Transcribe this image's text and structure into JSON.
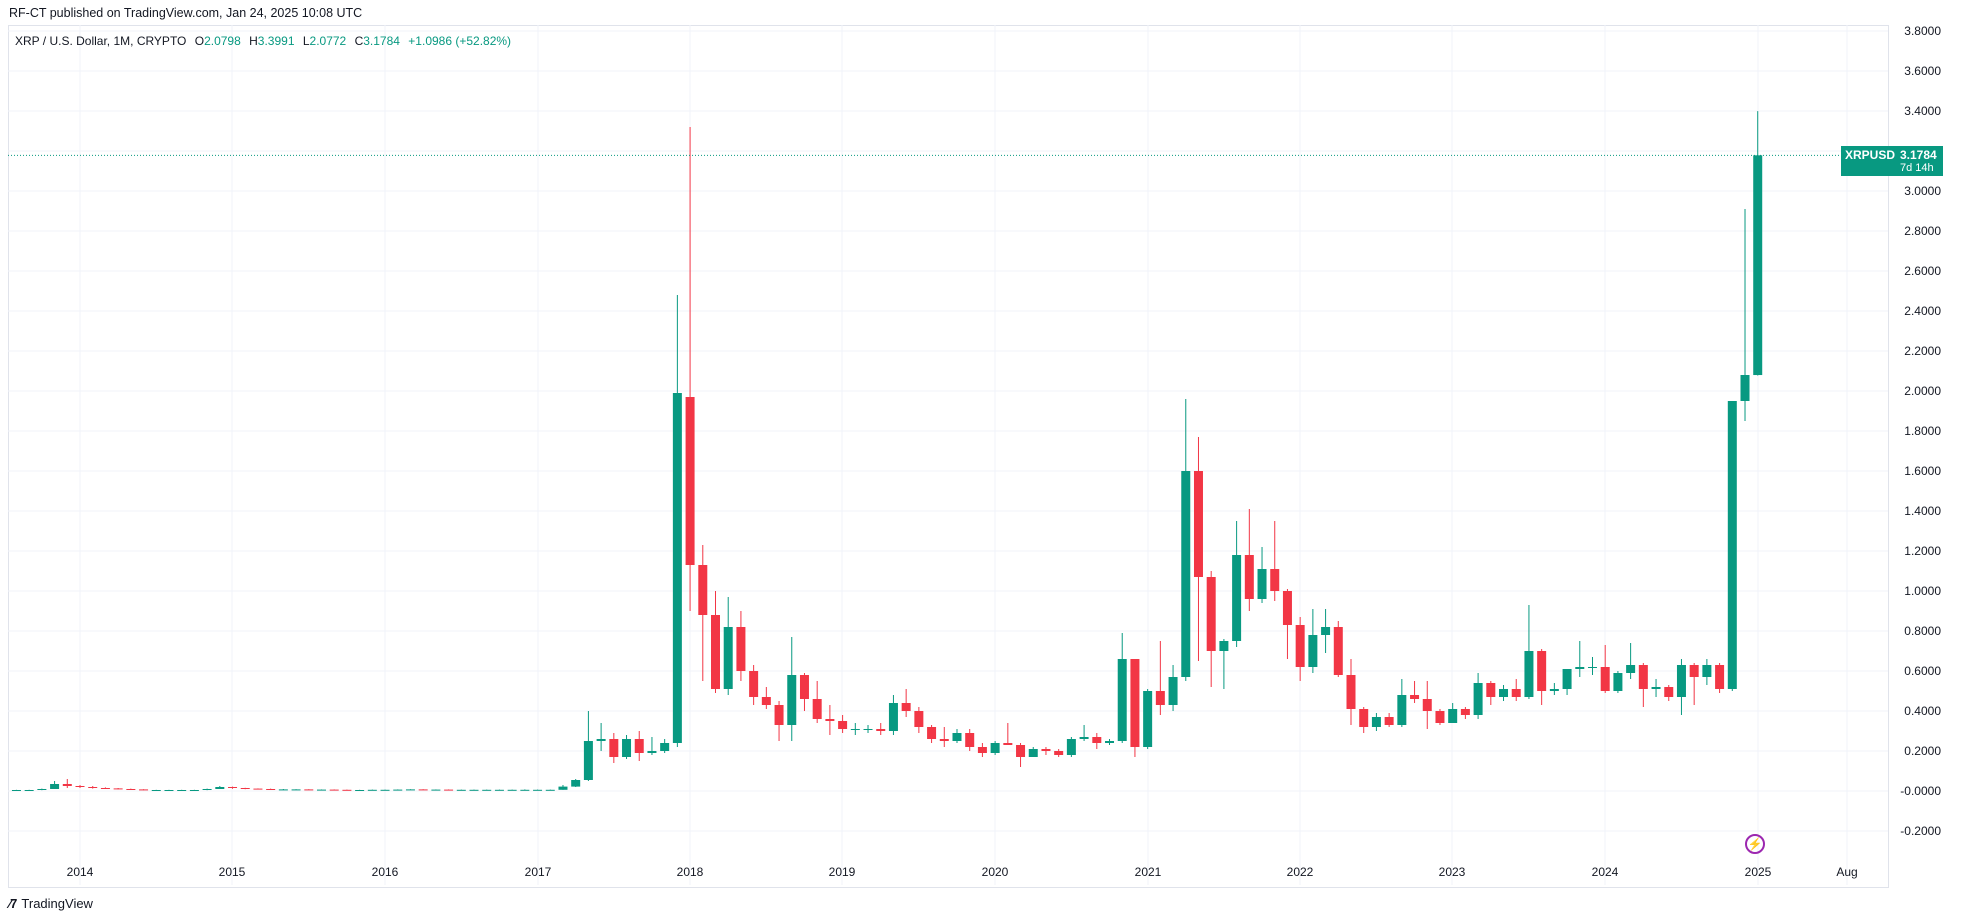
{
  "header": {
    "published": "RF-CT published on TradingView.com, Jan 24, 2025 10:08 UTC"
  },
  "legend": {
    "symbol": "XRP / U.S. Dollar, 1M, CRYPTO",
    "o_label": "O",
    "o_value": "2.0798",
    "h_label": "H",
    "h_value": "3.3991",
    "l_label": "L",
    "l_value": "2.0772",
    "c_label": "C",
    "c_value": "3.1784",
    "change": "+1.0986 (+52.82%)"
  },
  "price_tag": {
    "symbol": "XRPUSD",
    "price": "3.1784",
    "countdown": "7d 14h"
  },
  "footer": {
    "brand": "TradingView"
  },
  "colors": {
    "up": "#089981",
    "down": "#f23645",
    "grid": "#f0f3fa",
    "axis_text": "#131722"
  },
  "chart_data": {
    "type": "candlestick",
    "interval": "1M",
    "y_axis_position": "right",
    "ylim": [
      -0.28,
      3.82
    ],
    "y_ticks": [
      "3.8000",
      "3.6000",
      "3.4000",
      "3.2000",
      "3.0000",
      "2.8000",
      "2.6000",
      "2.4000",
      "2.2000",
      "2.0000",
      "1.8000",
      "1.6000",
      "1.4000",
      "1.2000",
      "1.0000",
      "0.8000",
      "0.6000",
      "0.4000",
      "0.2000",
      "-0.0000",
      "-0.2000"
    ],
    "x_ticks": [
      "2014",
      "2015",
      "2016",
      "2017",
      "2018",
      "2019",
      "2020",
      "2021",
      "2022",
      "2023",
      "2024",
      "2025",
      "Aug"
    ],
    "last_price": 3.1784,
    "candles": [
      {
        "t": "2013-08",
        "o": 0.004,
        "h": 0.006,
        "l": 0.003,
        "c": 0.005
      },
      {
        "t": "2013-09",
        "o": 0.005,
        "h": 0.006,
        "l": 0.004,
        "c": 0.005
      },
      {
        "t": "2013-10",
        "o": 0.005,
        "h": 0.012,
        "l": 0.004,
        "c": 0.01
      },
      {
        "t": "2013-11",
        "o": 0.01,
        "h": 0.05,
        "l": 0.01,
        "c": 0.035
      },
      {
        "t": "2013-12",
        "o": 0.035,
        "h": 0.06,
        "l": 0.015,
        "c": 0.025
      },
      {
        "t": "2014-01",
        "o": 0.025,
        "h": 0.03,
        "l": 0.015,
        "c": 0.02
      },
      {
        "t": "2014-02",
        "o": 0.02,
        "h": 0.025,
        "l": 0.012,
        "c": 0.015
      },
      {
        "t": "2014-03",
        "o": 0.015,
        "h": 0.018,
        "l": 0.01,
        "c": 0.013
      },
      {
        "t": "2014-04",
        "o": 0.013,
        "h": 0.015,
        "l": 0.008,
        "c": 0.01
      },
      {
        "t": "2014-05",
        "o": 0.01,
        "h": 0.012,
        "l": 0.006,
        "c": 0.008
      },
      {
        "t": "2014-06",
        "o": 0.008,
        "h": 0.009,
        "l": 0.004,
        "c": 0.005
      },
      {
        "t": "2014-07",
        "o": 0.005,
        "h": 0.006,
        "l": 0.004,
        "c": 0.005
      },
      {
        "t": "2014-08",
        "o": 0.005,
        "h": 0.006,
        "l": 0.004,
        "c": 0.005
      },
      {
        "t": "2014-09",
        "o": 0.005,
        "h": 0.006,
        "l": 0.004,
        "c": 0.005
      },
      {
        "t": "2014-10",
        "o": 0.005,
        "h": 0.006,
        "l": 0.004,
        "c": 0.005
      },
      {
        "t": "2014-11",
        "o": 0.005,
        "h": 0.012,
        "l": 0.004,
        "c": 0.01
      },
      {
        "t": "2014-12",
        "o": 0.01,
        "h": 0.025,
        "l": 0.01,
        "c": 0.02
      },
      {
        "t": "2015-01",
        "o": 0.02,
        "h": 0.022,
        "l": 0.011,
        "c": 0.015
      },
      {
        "t": "2015-02",
        "o": 0.015,
        "h": 0.016,
        "l": 0.009,
        "c": 0.012
      },
      {
        "t": "2015-03",
        "o": 0.012,
        "h": 0.013,
        "l": 0.008,
        "c": 0.01
      },
      {
        "t": "2015-04",
        "o": 0.01,
        "h": 0.012,
        "l": 0.007,
        "c": 0.008
      },
      {
        "t": "2015-05",
        "o": 0.008,
        "h": 0.01,
        "l": 0.006,
        "c": 0.008
      },
      {
        "t": "2015-06",
        "o": 0.008,
        "h": 0.009,
        "l": 0.006,
        "c": 0.008
      },
      {
        "t": "2015-07",
        "o": 0.008,
        "h": 0.009,
        "l": 0.006,
        "c": 0.007
      },
      {
        "t": "2015-08",
        "o": 0.007,
        "h": 0.008,
        "l": 0.006,
        "c": 0.007
      },
      {
        "t": "2015-09",
        "o": 0.007,
        "h": 0.008,
        "l": 0.005,
        "c": 0.006
      },
      {
        "t": "2015-10",
        "o": 0.006,
        "h": 0.007,
        "l": 0.005,
        "c": 0.005
      },
      {
        "t": "2015-11",
        "o": 0.005,
        "h": 0.006,
        "l": 0.004,
        "c": 0.005
      },
      {
        "t": "2015-12",
        "o": 0.005,
        "h": 0.007,
        "l": 0.004,
        "c": 0.006
      },
      {
        "t": "2016-01",
        "o": 0.006,
        "h": 0.007,
        "l": 0.005,
        "c": 0.006
      },
      {
        "t": "2016-02",
        "o": 0.006,
        "h": 0.008,
        "l": 0.005,
        "c": 0.007
      },
      {
        "t": "2016-03",
        "o": 0.007,
        "h": 0.009,
        "l": 0.006,
        "c": 0.008
      },
      {
        "t": "2016-04",
        "o": 0.008,
        "h": 0.009,
        "l": 0.006,
        "c": 0.007
      },
      {
        "t": "2016-05",
        "o": 0.007,
        "h": 0.008,
        "l": 0.006,
        "c": 0.007
      },
      {
        "t": "2016-06",
        "o": 0.007,
        "h": 0.008,
        "l": 0.005,
        "c": 0.006
      },
      {
        "t": "2016-07",
        "o": 0.006,
        "h": 0.007,
        "l": 0.005,
        "c": 0.006
      },
      {
        "t": "2016-08",
        "o": 0.006,
        "h": 0.007,
        "l": 0.005,
        "c": 0.006
      },
      {
        "t": "2016-09",
        "o": 0.006,
        "h": 0.007,
        "l": 0.005,
        "c": 0.006
      },
      {
        "t": "2016-10",
        "o": 0.006,
        "h": 0.007,
        "l": 0.005,
        "c": 0.006
      },
      {
        "t": "2016-11",
        "o": 0.006,
        "h": 0.007,
        "l": 0.005,
        "c": 0.006
      },
      {
        "t": "2016-12",
        "o": 0.006,
        "h": 0.008,
        "l": 0.005,
        "c": 0.006
      },
      {
        "t": "2017-01",
        "o": 0.006,
        "h": 0.007,
        "l": 0.005,
        "c": 0.006
      },
      {
        "t": "2017-02",
        "o": 0.006,
        "h": 0.007,
        "l": 0.005,
        "c": 0.006
      },
      {
        "t": "2017-03",
        "o": 0.006,
        "h": 0.03,
        "l": 0.006,
        "c": 0.022
      },
      {
        "t": "2017-04",
        "o": 0.022,
        "h": 0.06,
        "l": 0.02,
        "c": 0.055
      },
      {
        "t": "2017-05",
        "o": 0.055,
        "h": 0.4,
        "l": 0.05,
        "c": 0.25
      },
      {
        "t": "2017-06",
        "o": 0.25,
        "h": 0.34,
        "l": 0.2,
        "c": 0.26
      },
      {
        "t": "2017-07",
        "o": 0.26,
        "h": 0.29,
        "l": 0.14,
        "c": 0.17
      },
      {
        "t": "2017-08",
        "o": 0.17,
        "h": 0.28,
        "l": 0.16,
        "c": 0.26
      },
      {
        "t": "2017-09",
        "o": 0.26,
        "h": 0.3,
        "l": 0.15,
        "c": 0.19
      },
      {
        "t": "2017-10",
        "o": 0.19,
        "h": 0.27,
        "l": 0.18,
        "c": 0.2
      },
      {
        "t": "2017-11",
        "o": 0.2,
        "h": 0.26,
        "l": 0.19,
        "c": 0.24
      },
      {
        "t": "2017-12",
        "o": 0.24,
        "h": 2.48,
        "l": 0.22,
        "c": 1.99
      },
      {
        "t": "2018-01",
        "o": 1.97,
        "h": 3.32,
        "l": 0.9,
        "c": 1.13
      },
      {
        "t": "2018-02",
        "o": 1.13,
        "h": 1.23,
        "l": 0.55,
        "c": 0.88
      },
      {
        "t": "2018-03",
        "o": 0.88,
        "h": 1.0,
        "l": 0.49,
        "c": 0.51
      },
      {
        "t": "2018-04",
        "o": 0.51,
        "h": 0.97,
        "l": 0.48,
        "c": 0.82
      },
      {
        "t": "2018-05",
        "o": 0.82,
        "h": 0.9,
        "l": 0.55,
        "c": 0.6
      },
      {
        "t": "2018-06",
        "o": 0.6,
        "h": 0.63,
        "l": 0.43,
        "c": 0.47
      },
      {
        "t": "2018-07",
        "o": 0.47,
        "h": 0.52,
        "l": 0.41,
        "c": 0.43
      },
      {
        "t": "2018-08",
        "o": 0.43,
        "h": 0.45,
        "l": 0.25,
        "c": 0.33
      },
      {
        "t": "2018-09",
        "o": 0.33,
        "h": 0.77,
        "l": 0.25,
        "c": 0.58
      },
      {
        "t": "2018-10",
        "o": 0.58,
        "h": 0.59,
        "l": 0.4,
        "c": 0.46
      },
      {
        "t": "2018-11",
        "o": 0.46,
        "h": 0.55,
        "l": 0.34,
        "c": 0.36
      },
      {
        "t": "2018-12",
        "o": 0.36,
        "h": 0.43,
        "l": 0.28,
        "c": 0.35
      },
      {
        "t": "2019-01",
        "o": 0.35,
        "h": 0.38,
        "l": 0.29,
        "c": 0.31
      },
      {
        "t": "2019-02",
        "o": 0.31,
        "h": 0.34,
        "l": 0.28,
        "c": 0.31
      },
      {
        "t": "2019-03",
        "o": 0.31,
        "h": 0.33,
        "l": 0.29,
        "c": 0.31
      },
      {
        "t": "2019-04",
        "o": 0.31,
        "h": 0.34,
        "l": 0.28,
        "c": 0.3
      },
      {
        "t": "2019-05",
        "o": 0.3,
        "h": 0.48,
        "l": 0.28,
        "c": 0.44
      },
      {
        "t": "2019-06",
        "o": 0.44,
        "h": 0.51,
        "l": 0.37,
        "c": 0.4
      },
      {
        "t": "2019-07",
        "o": 0.4,
        "h": 0.42,
        "l": 0.29,
        "c": 0.32
      },
      {
        "t": "2019-08",
        "o": 0.32,
        "h": 0.33,
        "l": 0.24,
        "c": 0.26
      },
      {
        "t": "2019-09",
        "o": 0.26,
        "h": 0.32,
        "l": 0.22,
        "c": 0.25
      },
      {
        "t": "2019-10",
        "o": 0.25,
        "h": 0.31,
        "l": 0.24,
        "c": 0.29
      },
      {
        "t": "2019-11",
        "o": 0.29,
        "h": 0.31,
        "l": 0.2,
        "c": 0.22
      },
      {
        "t": "2019-12",
        "o": 0.22,
        "h": 0.24,
        "l": 0.17,
        "c": 0.19
      },
      {
        "t": "2020-01",
        "o": 0.19,
        "h": 0.25,
        "l": 0.18,
        "c": 0.24
      },
      {
        "t": "2020-02",
        "o": 0.24,
        "h": 0.34,
        "l": 0.23,
        "c": 0.23
      },
      {
        "t": "2020-03",
        "o": 0.23,
        "h": 0.24,
        "l": 0.12,
        "c": 0.17
      },
      {
        "t": "2020-04",
        "o": 0.17,
        "h": 0.22,
        "l": 0.17,
        "c": 0.21
      },
      {
        "t": "2020-05",
        "o": 0.21,
        "h": 0.22,
        "l": 0.18,
        "c": 0.2
      },
      {
        "t": "2020-06",
        "o": 0.2,
        "h": 0.21,
        "l": 0.17,
        "c": 0.18
      },
      {
        "t": "2020-07",
        "o": 0.18,
        "h": 0.27,
        "l": 0.17,
        "c": 0.26
      },
      {
        "t": "2020-08",
        "o": 0.26,
        "h": 0.33,
        "l": 0.25,
        "c": 0.27
      },
      {
        "t": "2020-09",
        "o": 0.27,
        "h": 0.29,
        "l": 0.21,
        "c": 0.24
      },
      {
        "t": "2020-10",
        "o": 0.24,
        "h": 0.26,
        "l": 0.23,
        "c": 0.25
      },
      {
        "t": "2020-11",
        "o": 0.25,
        "h": 0.79,
        "l": 0.24,
        "c": 0.66
      },
      {
        "t": "2020-12",
        "o": 0.66,
        "h": 0.66,
        "l": 0.17,
        "c": 0.22
      },
      {
        "t": "2021-01",
        "o": 0.22,
        "h": 0.51,
        "l": 0.21,
        "c": 0.5
      },
      {
        "t": "2021-02",
        "o": 0.5,
        "h": 0.75,
        "l": 0.38,
        "c": 0.43
      },
      {
        "t": "2021-03",
        "o": 0.43,
        "h": 0.63,
        "l": 0.4,
        "c": 0.57
      },
      {
        "t": "2021-04",
        "o": 0.57,
        "h": 1.96,
        "l": 0.55,
        "c": 1.6
      },
      {
        "t": "2021-05",
        "o": 1.6,
        "h": 1.77,
        "l": 0.65,
        "c": 1.07
      },
      {
        "t": "2021-06",
        "o": 1.07,
        "h": 1.1,
        "l": 0.52,
        "c": 0.7
      },
      {
        "t": "2021-07",
        "o": 0.7,
        "h": 0.76,
        "l": 0.51,
        "c": 0.75
      },
      {
        "t": "2021-08",
        "o": 0.75,
        "h": 1.35,
        "l": 0.72,
        "c": 1.18
      },
      {
        "t": "2021-09",
        "o": 1.18,
        "h": 1.41,
        "l": 0.9,
        "c": 0.96
      },
      {
        "t": "2021-10",
        "o": 0.96,
        "h": 1.22,
        "l": 0.94,
        "c": 1.11
      },
      {
        "t": "2021-11",
        "o": 1.11,
        "h": 1.35,
        "l": 0.95,
        "c": 1.0
      },
      {
        "t": "2021-12",
        "o": 1.0,
        "h": 1.01,
        "l": 0.66,
        "c": 0.83
      },
      {
        "t": "2022-01",
        "o": 0.83,
        "h": 0.87,
        "l": 0.55,
        "c": 0.62
      },
      {
        "t": "2022-02",
        "o": 0.62,
        "h": 0.91,
        "l": 0.59,
        "c": 0.78
      },
      {
        "t": "2022-03",
        "o": 0.78,
        "h": 0.91,
        "l": 0.69,
        "c": 0.82
      },
      {
        "t": "2022-04",
        "o": 0.82,
        "h": 0.85,
        "l": 0.57,
        "c": 0.58
      },
      {
        "t": "2022-05",
        "o": 0.58,
        "h": 0.66,
        "l": 0.33,
        "c": 0.41
      },
      {
        "t": "2022-06",
        "o": 0.41,
        "h": 0.42,
        "l": 0.29,
        "c": 0.32
      },
      {
        "t": "2022-07",
        "o": 0.32,
        "h": 0.39,
        "l": 0.3,
        "c": 0.37
      },
      {
        "t": "2022-08",
        "o": 0.37,
        "h": 0.39,
        "l": 0.32,
        "c": 0.33
      },
      {
        "t": "2022-09",
        "o": 0.33,
        "h": 0.56,
        "l": 0.32,
        "c": 0.48
      },
      {
        "t": "2022-10",
        "o": 0.48,
        "h": 0.55,
        "l": 0.44,
        "c": 0.46
      },
      {
        "t": "2022-11",
        "o": 0.46,
        "h": 0.55,
        "l": 0.31,
        "c": 0.4
      },
      {
        "t": "2022-12",
        "o": 0.4,
        "h": 0.41,
        "l": 0.33,
        "c": 0.34
      },
      {
        "t": "2023-01",
        "o": 0.34,
        "h": 0.44,
        "l": 0.34,
        "c": 0.41
      },
      {
        "t": "2023-02",
        "o": 0.41,
        "h": 0.42,
        "l": 0.36,
        "c": 0.38
      },
      {
        "t": "2023-03",
        "o": 0.38,
        "h": 0.59,
        "l": 0.36,
        "c": 0.54
      },
      {
        "t": "2023-04",
        "o": 0.54,
        "h": 0.55,
        "l": 0.43,
        "c": 0.47
      },
      {
        "t": "2023-05",
        "o": 0.47,
        "h": 0.53,
        "l": 0.45,
        "c": 0.51
      },
      {
        "t": "2023-06",
        "o": 0.51,
        "h": 0.56,
        "l": 0.45,
        "c": 0.47
      },
      {
        "t": "2023-07",
        "o": 0.47,
        "h": 0.93,
        "l": 0.46,
        "c": 0.7
      },
      {
        "t": "2023-08",
        "o": 0.7,
        "h": 0.71,
        "l": 0.43,
        "c": 0.5
      },
      {
        "t": "2023-09",
        "o": 0.5,
        "h": 0.54,
        "l": 0.48,
        "c": 0.51
      },
      {
        "t": "2023-10",
        "o": 0.51,
        "h": 0.59,
        "l": 0.48,
        "c": 0.61
      },
      {
        "t": "2023-11",
        "o": 0.61,
        "h": 0.75,
        "l": 0.57,
        "c": 0.62
      },
      {
        "t": "2023-12",
        "o": 0.62,
        "h": 0.67,
        "l": 0.58,
        "c": 0.62
      },
      {
        "t": "2024-01",
        "o": 0.62,
        "h": 0.73,
        "l": 0.49,
        "c": 0.5
      },
      {
        "t": "2024-02",
        "o": 0.5,
        "h": 0.6,
        "l": 0.49,
        "c": 0.59
      },
      {
        "t": "2024-03",
        "o": 0.59,
        "h": 0.74,
        "l": 0.56,
        "c": 0.63
      },
      {
        "t": "2024-04",
        "o": 0.63,
        "h": 0.64,
        "l": 0.42,
        "c": 0.51
      },
      {
        "t": "2024-05",
        "o": 0.51,
        "h": 0.56,
        "l": 0.47,
        "c": 0.52
      },
      {
        "t": "2024-06",
        "o": 0.52,
        "h": 0.53,
        "l": 0.45,
        "c": 0.47
      },
      {
        "t": "2024-07",
        "o": 0.47,
        "h": 0.66,
        "l": 0.38,
        "c": 0.63
      },
      {
        "t": "2024-08",
        "o": 0.63,
        "h": 0.64,
        "l": 0.43,
        "c": 0.57
      },
      {
        "t": "2024-09",
        "o": 0.57,
        "h": 0.66,
        "l": 0.53,
        "c": 0.63
      },
      {
        "t": "2024-10",
        "o": 0.63,
        "h": 0.64,
        "l": 0.49,
        "c": 0.51
      },
      {
        "t": "2024-11",
        "o": 0.51,
        "h": 1.95,
        "l": 0.5,
        "c": 1.95
      },
      {
        "t": "2024-12",
        "o": 1.95,
        "h": 2.91,
        "l": 1.85,
        "c": 2.08
      },
      {
        "t": "2025-01",
        "o": 2.0798,
        "h": 3.3991,
        "l": 2.0772,
        "c": 3.1784
      }
    ]
  }
}
